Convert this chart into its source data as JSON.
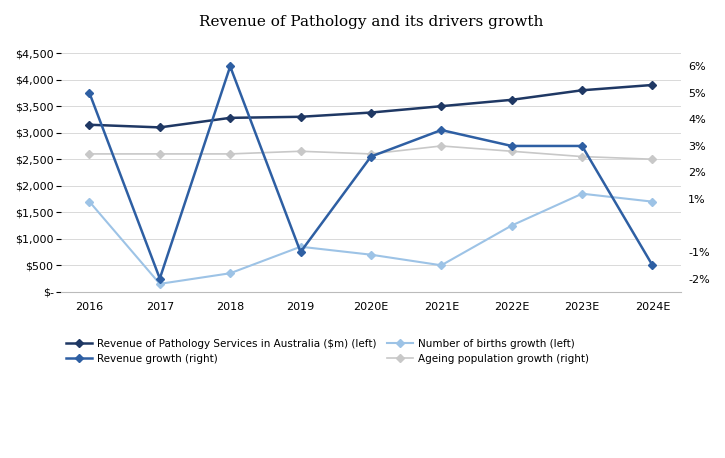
{
  "title": "Revenue of Pathology and its drivers growth",
  "x_labels": [
    "2016",
    "2017",
    "2018",
    "2019",
    "2020E",
    "2021E",
    "2022E",
    "2023E",
    "2024E"
  ],
  "revenue_pathology": [
    3150,
    3100,
    3280,
    3300,
    3380,
    3500,
    3620,
    3800,
    3900
  ],
  "births_growth": [
    1700,
    150,
    350,
    850,
    700,
    500,
    1250,
    1850,
    1700
  ],
  "revenue_growth_pct": [
    0.05,
    -0.02,
    0.06,
    -0.01,
    0.026,
    0.036,
    0.03,
    0.03,
    -0.015
  ],
  "ageing_growth_pct": [
    0.027,
    0.027,
    0.027,
    0.028,
    0.027,
    0.03,
    0.028,
    0.026,
    0.025
  ],
  "left_ylim": [
    0,
    4750
  ],
  "left_yticks": [
    0,
    500,
    1000,
    1500,
    2000,
    2500,
    3000,
    3500,
    4000,
    4500
  ],
  "right_ylim": [
    -0.025,
    0.07
  ],
  "right_yticks": [
    -0.02,
    -0.01,
    0.0,
    0.01,
    0.02,
    0.03,
    0.04,
    0.05,
    0.06
  ],
  "color_revenue_pathology": "#1f3864",
  "color_revenue_growth": "#2e5fa3",
  "color_births_growth": "#9dc3e6",
  "color_ageing_growth": "#c8c8c8",
  "legend_labels": [
    "Revenue of Pathology Services in Australia ($m) (left)",
    "Revenue growth (right)",
    "Number of births growth (left)",
    "Ageing population growth (right)"
  ],
  "background_color": "#ffffff",
  "grid_color": "#d9d9d9"
}
